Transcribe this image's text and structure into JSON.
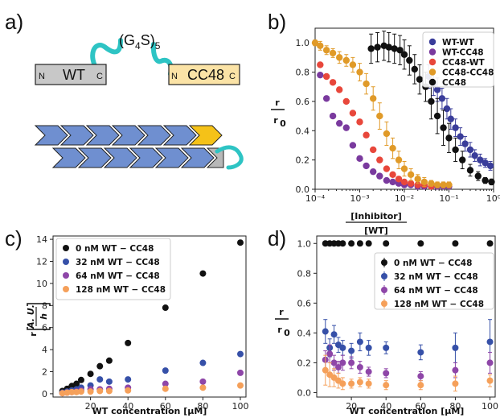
{
  "panel_labels": {
    "a": "a)",
    "b": "b)",
    "c": "c)",
    "d": "d)"
  },
  "diagram": {
    "linker_main": "(G",
    "linker_sub1": "4",
    "linker_mid": "S)",
    "linker_sub2": "5",
    "wt_box": {
      "n": "N",
      "label": "WT",
      "c": "C"
    },
    "cc48_box": {
      "n": "N",
      "label": "CC48",
      "c": "C"
    },
    "colors": {
      "wt": "#c8c8c8",
      "cc48": "#fbe3a6",
      "linker": "#2ec4c4",
      "chevron": "#6f8fd0",
      "chevron_highlight": "#f5c218"
    }
  },
  "chart_data": [
    {
      "id": "b",
      "type": "scatter",
      "xscale": "log",
      "xlim": [
        0.0001,
        1
      ],
      "ylim": [
        0,
        1.1
      ],
      "xticks": [
        "10⁻⁴",
        "10⁻³",
        "10⁻²",
        "10⁻¹",
        "10⁰"
      ],
      "yticks": [
        "0.0",
        "0.2",
        "0.4",
        "0.6",
        "0.8",
        "1.0"
      ],
      "xlabel_num": "[Inhibitor]",
      "xlabel_den": "[WT]",
      "ylabel_num": "r",
      "ylabel_den": "r",
      "ylabel_den_sub": "0",
      "legend_position": "top-right",
      "series": [
        {
          "name": "WT-WT",
          "color": "#3a3d9a",
          "x": [
            0.035,
            0.045,
            0.055,
            0.07,
            0.09,
            0.11,
            0.14,
            0.18,
            0.23,
            0.3,
            0.38,
            0.5,
            0.65,
            0.85
          ],
          "y": [
            0.77,
            0.72,
            0.68,
            0.62,
            0.55,
            0.48,
            0.42,
            0.36,
            0.31,
            0.27,
            0.23,
            0.2,
            0.18,
            0.16
          ],
          "err": [
            0.08,
            0.08,
            0.08,
            0.07,
            0.07,
            0.07,
            0.06,
            0.06,
            0.05,
            0.05,
            0.04,
            0.04,
            0.03,
            0.03
          ]
        },
        {
          "name": "WT-CC48",
          "color": "#7a3a9e",
          "x": [
            0.00013,
            0.00018,
            0.00025,
            0.00035,
            0.0005,
            0.0007,
            0.001,
            0.0014,
            0.002,
            0.0028,
            0.004,
            0.0055,
            0.0075,
            0.01,
            0.014,
            0.02,
            0.028,
            0.04,
            0.055,
            0.075,
            0.1
          ],
          "y": [
            0.78,
            0.62,
            0.5,
            0.45,
            0.42,
            0.3,
            0.21,
            0.16,
            0.12,
            0.09,
            0.06,
            0.05,
            0.04,
            0.03,
            0.03,
            0.02,
            0.02,
            0.02,
            0.02,
            0.02,
            0.02
          ]
        },
        {
          "name": "CC48-WT",
          "color": "#e8473b",
          "x": [
            0.00013,
            0.00018,
            0.00025,
            0.00035,
            0.0005,
            0.0007,
            0.001,
            0.0014,
            0.002,
            0.0028,
            0.004,
            0.0055,
            0.0075,
            0.01,
            0.014,
            0.02,
            0.028,
            0.04
          ],
          "y": [
            0.85,
            0.77,
            0.73,
            0.68,
            0.6,
            0.52,
            0.46,
            0.37,
            0.27,
            0.2,
            0.14,
            0.1,
            0.07,
            0.05,
            0.04,
            0.03,
            0.03,
            0.02
          ]
        },
        {
          "name": "CC48-CC48",
          "color": "#e09a28",
          "x": [
            0.0001,
            0.00013,
            0.00018,
            0.00025,
            0.00035,
            0.0005,
            0.0007,
            0.001,
            0.0014,
            0.002,
            0.0028,
            0.004,
            0.0055,
            0.0075,
            0.01,
            0.014,
            0.02,
            0.028,
            0.04,
            0.055,
            0.075,
            0.1
          ],
          "y": [
            1.0,
            0.98,
            0.95,
            0.93,
            0.9,
            0.88,
            0.85,
            0.8,
            0.72,
            0.62,
            0.5,
            0.38,
            0.28,
            0.2,
            0.14,
            0.1,
            0.07,
            0.05,
            0.04,
            0.03,
            0.03,
            0.03
          ],
          "err": [
            0.02,
            0.03,
            0.03,
            0.03,
            0.04,
            0.04,
            0.05,
            0.06,
            0.07,
            0.08,
            0.09,
            0.08,
            0.07,
            0.06,
            0.05,
            0.04,
            0.03,
            0.03,
            0.02,
            0.02,
            0.02,
            0.02
          ]
        },
        {
          "name": "CC48",
          "color": "#111111",
          "x": [
            0.0018,
            0.0025,
            0.0035,
            0.0045,
            0.006,
            0.008,
            0.01,
            0.013,
            0.017,
            0.022,
            0.03,
            0.04,
            0.055,
            0.075,
            0.1,
            0.14,
            0.2,
            0.3,
            0.45,
            0.65,
            0.9
          ],
          "y": [
            0.96,
            0.97,
            0.98,
            0.97,
            0.96,
            0.95,
            0.92,
            0.88,
            0.82,
            0.75,
            0.7,
            0.6,
            0.5,
            0.42,
            0.35,
            0.27,
            0.2,
            0.13,
            0.09,
            0.06,
            0.05
          ],
          "err": [
            0.1,
            0.1,
            0.1,
            0.1,
            0.1,
            0.1,
            0.1,
            0.1,
            0.1,
            0.1,
            0.1,
            0.12,
            0.12,
            0.12,
            0.1,
            0.08,
            0.06,
            0.04,
            0.03,
            0.02,
            0.02
          ]
        }
      ]
    },
    {
      "id": "c",
      "type": "scatter",
      "xlim": [
        0,
        103
      ],
      "ylim": [
        -0.3,
        14.3
      ],
      "xticks": [
        20,
        40,
        60,
        80,
        100
      ],
      "yticks": [
        0,
        2,
        4,
        6,
        8,
        10,
        12,
        14
      ],
      "xlabel": "WT concentration [μM]",
      "ylabel_r": "r",
      "ylabel_num": "A. U.",
      "ylabel_den": "h",
      "legend_position": "top-left",
      "series": [
        {
          "name": "0 nM WT − CC48",
          "color": "#111111",
          "x": [
            5,
            7.5,
            10,
            12.5,
            15,
            20,
            25,
            30,
            40,
            60,
            80,
            100
          ],
          "y": [
            0.25,
            0.45,
            0.7,
            0.9,
            1.25,
            1.8,
            2.5,
            3.0,
            4.6,
            7.8,
            10.9,
            13.7
          ]
        },
        {
          "name": "32 nM WT − CC48",
          "color": "#3650a8",
          "x": [
            5,
            7.5,
            10,
            12.5,
            15,
            20,
            25,
            30,
            40,
            60,
            80,
            100
          ],
          "y": [
            0.1,
            0.2,
            0.3,
            0.4,
            0.55,
            0.75,
            1.3,
            1.1,
            1.3,
            2.1,
            2.8,
            3.6
          ]
        },
        {
          "name": "64 nM WT − CC48",
          "color": "#8e46a8",
          "x": [
            5,
            7.5,
            10,
            12.5,
            15,
            20,
            25,
            30,
            40,
            60,
            80,
            100
          ],
          "y": [
            0.05,
            0.1,
            0.15,
            0.2,
            0.3,
            0.4,
            0.4,
            0.45,
            0.55,
            0.9,
            1.1,
            1.9
          ]
        },
        {
          "name": "128 nM WT − CC48",
          "color": "#f5a05a",
          "x": [
            5,
            7.5,
            10,
            12.5,
            15,
            20,
            25,
            30,
            40,
            60,
            80,
            100
          ],
          "y": [
            0.05,
            0.1,
            0.15,
            0.15,
            0.2,
            0.2,
            0.25,
            0.25,
            0.3,
            0.45,
            0.55,
            0.75
          ]
        }
      ]
    },
    {
      "id": "d",
      "type": "scatter",
      "xlim": [
        0,
        103
      ],
      "ylim": [
        -0.03,
        1.05
      ],
      "xticks": [
        20,
        40,
        60,
        80,
        100
      ],
      "yticks": [
        "0.0",
        "0.2",
        "0.4",
        "0.6",
        "0.8",
        "1.0"
      ],
      "xlabel": "WT concentration [μM]",
      "ylabel_num": "r",
      "ylabel_den": "r",
      "ylabel_den_sub": "0",
      "legend_position": "top-right",
      "series": [
        {
          "name": "0 nM WT − CC48",
          "color": "#111111",
          "x": [
            5,
            7.5,
            10,
            12.5,
            15,
            20,
            25,
            30,
            40,
            60,
            80,
            100
          ],
          "y": [
            1.0,
            1.0,
            1.0,
            1.0,
            1.0,
            1.0,
            1.0,
            1.0,
            1.0,
            1.0,
            1.0,
            1.0
          ],
          "err": [
            0,
            0,
            0,
            0,
            0,
            0,
            0,
            0,
            0,
            0,
            0,
            0
          ]
        },
        {
          "name": "32 nM WT − CC48",
          "color": "#3650a8",
          "x": [
            5,
            7.5,
            10,
            12.5,
            15,
            20,
            25,
            30,
            40,
            60,
            80,
            100
          ],
          "y": [
            0.41,
            0.3,
            0.39,
            0.32,
            0.3,
            0.28,
            0.34,
            0.3,
            0.3,
            0.27,
            0.3,
            0.34
          ],
          "err": [
            0.08,
            0.06,
            0.06,
            0.05,
            0.05,
            0.05,
            0.06,
            0.05,
            0.04,
            0.05,
            0.1,
            0.15
          ]
        },
        {
          "name": "64 nM WT − CC48",
          "color": "#8e46a8",
          "x": [
            5,
            7.5,
            10,
            12.5,
            15,
            20,
            25,
            30,
            40,
            60,
            80,
            100
          ],
          "y": [
            0.22,
            0.26,
            0.2,
            0.17,
            0.2,
            0.2,
            0.17,
            0.14,
            0.13,
            0.11,
            0.15,
            0.2
          ],
          "err": [
            0.06,
            0.06,
            0.05,
            0.04,
            0.05,
            0.04,
            0.04,
            0.03,
            0.03,
            0.03,
            0.05,
            0.07
          ]
        },
        {
          "name": "128 nM WT − CC48",
          "color": "#f5a05a",
          "x": [
            5,
            7.5,
            10,
            12.5,
            15,
            20,
            25,
            30,
            40,
            60,
            80,
            100
          ],
          "y": [
            0.15,
            0.12,
            0.1,
            0.08,
            0.06,
            0.06,
            0.07,
            0.06,
            0.05,
            0.05,
            0.06,
            0.08
          ],
          "err": [
            0.1,
            0.08,
            0.06,
            0.05,
            0.04,
            0.03,
            0.03,
            0.03,
            0.03,
            0.03,
            0.05,
            0.04
          ]
        }
      ]
    }
  ]
}
